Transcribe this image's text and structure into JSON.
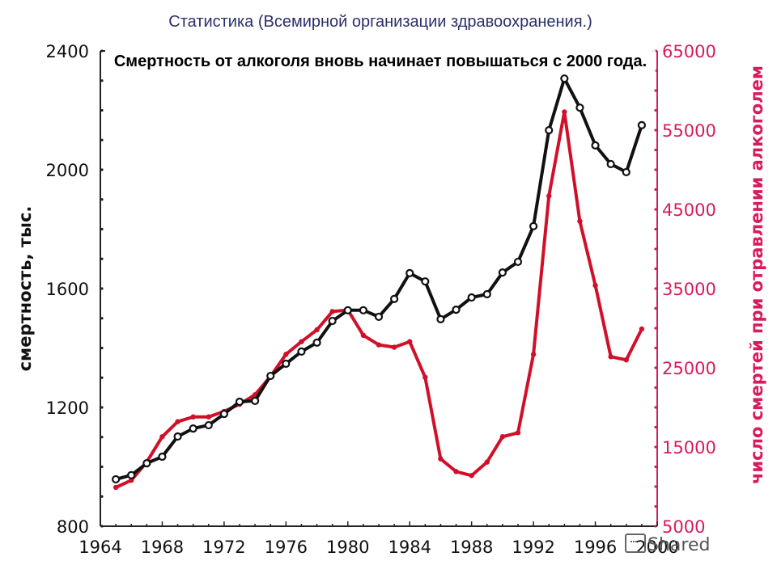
{
  "header": {
    "source_title": "Статистика (Всемирной организации здравоохранения.)",
    "headline": "Смертность от алкоголя вновь начинает повышаться с 2000 года."
  },
  "watermark": {
    "text": "Shared",
    "icon": "presentation-screen-icon"
  },
  "colors": {
    "black_series": "#111111",
    "red_series": "#d0102a",
    "right_axis": "#d81b5a"
  },
  "chart_data": {
    "type": "line",
    "title": "Смертность от алкоголя вновь начинает повышаться с 2000 года.",
    "subtitle": "Статистика (Всемирной организации здравоохранения.)",
    "xlabel": "",
    "ylabel": "смертность, тыс.",
    "ylabel_right": "число смертей при отравлении алкоголем",
    "xlim": [
      1964,
      2000
    ],
    "ylim": [
      800,
      2400
    ],
    "ylim_right": [
      5000,
      65000
    ],
    "x_ticks": [
      1964,
      1968,
      1972,
      1976,
      1980,
      1984,
      1988,
      1992,
      1996,
      2000
    ],
    "y_ticks": [
      800,
      1200,
      1600,
      2000,
      2400
    ],
    "y_ticks_right": [
      5000,
      15000,
      25000,
      35000,
      45000,
      55000,
      65000
    ],
    "grid": false,
    "legend": null,
    "x": [
      1965,
      1966,
      1967,
      1968,
      1969,
      1970,
      1971,
      1972,
      1973,
      1974,
      1975,
      1976,
      1977,
      1978,
      1979,
      1980,
      1981,
      1982,
      1983,
      1984,
      1985,
      1986,
      1987,
      1988,
      1989,
      1990,
      1991,
      1992,
      1993,
      1994,
      1995,
      1996,
      1997,
      1998,
      1999
    ],
    "series": [
      {
        "name": "смертность, тыс.",
        "axis": "left",
        "color": "#111111",
        "marker": "open-circle",
        "values": [
          958,
          972,
          1012,
          1034,
          1102,
          1129,
          1140,
          1178,
          1219,
          1222,
          1306,
          1347,
          1388,
          1418,
          1491,
          1527,
          1527,
          1505,
          1565,
          1652,
          1624,
          1497,
          1529,
          1570,
          1581,
          1654,
          1690,
          1810,
          2133,
          2307,
          2209,
          2082,
          2019,
          1992,
          2150
        ]
      },
      {
        "name": "число смертей при отравлении алкоголем",
        "axis": "right",
        "color": "#d0102a",
        "marker": "filled-dot",
        "values": [
          9900,
          10800,
          13100,
          16300,
          18200,
          18800,
          18800,
          19500,
          20400,
          21600,
          23900,
          26700,
          28300,
          29800,
          32100,
          32300,
          29100,
          27900,
          27600,
          28300,
          23800,
          13500,
          11900,
          11400,
          13100,
          16300,
          16800,
          26700,
          46700,
          57300,
          43500,
          35400,
          26400,
          26000,
          29900
        ]
      }
    ]
  }
}
